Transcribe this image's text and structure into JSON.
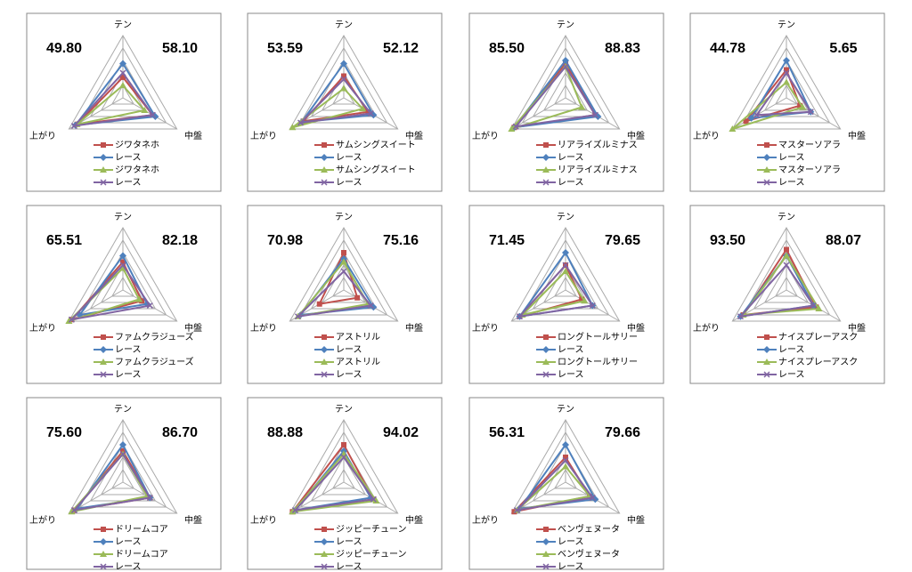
{
  "chart_data": [
    {
      "type": "radar",
      "annotations": [
        "49.80",
        "58.10"
      ],
      "categories": [
        "テン",
        "中盤",
        "上がり"
      ],
      "rlim": [
        0,
        100
      ],
      "rticks": [
        20,
        40,
        60,
        80,
        100
      ],
      "series": [
        {
          "name": "ジワタネホ",
          "color": "#c0504d",
          "marker": "square",
          "values": [
            33,
            55,
            85
          ]
        },
        {
          "name": "レース",
          "color": "#4f81bd",
          "marker": "diamond",
          "values": [
            55,
            60,
            88
          ]
        },
        {
          "name": "ジワタネホ",
          "color": "#9bbb59",
          "marker": "triangle",
          "values": [
            20,
            40,
            85
          ]
        },
        {
          "name": "レース",
          "color": "#8064a2",
          "marker": "x",
          "values": [
            40,
            55,
            90
          ]
        }
      ]
    },
    {
      "type": "radar",
      "annotations": [
        "53.59",
        "52.12"
      ],
      "categories": [
        "テン",
        "中盤",
        "上がり"
      ],
      "rlim": [
        0,
        100
      ],
      "rticks": [
        20,
        40,
        60,
        80,
        100
      ],
      "series": [
        {
          "name": "サムシングスイート",
          "color": "#c0504d",
          "marker": "square",
          "values": [
            35,
            45,
            75
          ]
        },
        {
          "name": "レース",
          "color": "#4f81bd",
          "marker": "diamond",
          "values": [
            55,
            55,
            78
          ]
        },
        {
          "name": "サムシングスイート",
          "color": "#9bbb59",
          "marker": "triangle",
          "values": [
            15,
            35,
            95
          ]
        },
        {
          "name": "レース",
          "color": "#8064a2",
          "marker": "x",
          "values": [
            30,
            50,
            80
          ]
        }
      ]
    },
    {
      "type": "radar",
      "annotations": [
        "85.50",
        "88.83"
      ],
      "categories": [
        "テン",
        "中盤",
        "上がり"
      ],
      "rlim": [
        0,
        100
      ],
      "rticks": [
        20,
        40,
        60,
        80,
        100
      ],
      "series": [
        {
          "name": "リアライズルミナス",
          "color": "#c0504d",
          "marker": "square",
          "values": [
            55,
            55,
            95
          ]
        },
        {
          "name": "レース",
          "color": "#4f81bd",
          "marker": "diamond",
          "values": [
            60,
            60,
            95
          ]
        },
        {
          "name": "リアライズルミナス",
          "color": "#9bbb59",
          "marker": "triangle",
          "values": [
            50,
            30,
            100
          ]
        },
        {
          "name": "レース",
          "color": "#8064a2",
          "marker": "x",
          "values": [
            50,
            55,
            92
          ]
        }
      ]
    },
    {
      "type": "radar",
      "annotations": [
        "44.78",
        "5.65"
      ],
      "categories": [
        "テン",
        "中盤",
        "上がり"
      ],
      "rlim": [
        0,
        100
      ],
      "rticks": [
        20,
        40,
        60,
        80,
        100
      ],
      "series": [
        {
          "name": "マスターソアラ",
          "color": "#c0504d",
          "marker": "square",
          "values": [
            45,
            25,
            75
          ]
        },
        {
          "name": "レース",
          "color": "#4f81bd",
          "marker": "diamond",
          "values": [
            60,
            45,
            65
          ]
        },
        {
          "name": "マスターソアラ",
          "color": "#9bbb59",
          "marker": "triangle",
          "values": [
            25,
            30,
            100
          ]
        },
        {
          "name": "レース",
          "color": "#8064a2",
          "marker": "x",
          "values": [
            40,
            45,
            55
          ]
        }
      ]
    },
    {
      "type": "radar",
      "annotations": [
        "65.51",
        "82.18"
      ],
      "categories": [
        "テン",
        "中盤",
        "上がり"
      ],
      "rlim": [
        0,
        100
      ],
      "rticks": [
        20,
        40,
        60,
        80,
        100
      ],
      "series": [
        {
          "name": "ファムクラジューズ",
          "color": "#c0504d",
          "marker": "square",
          "values": [
            45,
            35,
            95
          ]
        },
        {
          "name": "レース",
          "color": "#4f81bd",
          "marker": "diamond",
          "values": [
            55,
            45,
            80
          ]
        },
        {
          "name": "ファムクラジューズ",
          "color": "#9bbb59",
          "marker": "triangle",
          "values": [
            35,
            30,
            100
          ]
        },
        {
          "name": "レース",
          "color": "#8064a2",
          "marker": "x",
          "values": [
            40,
            50,
            95
          ]
        }
      ]
    },
    {
      "type": "radar",
      "annotations": [
        "70.98",
        "75.16"
      ],
      "categories": [
        "テン",
        "中盤",
        "上がり"
      ],
      "rlim": [
        0,
        100
      ],
      "rticks": [
        20,
        40,
        60,
        80,
        100
      ],
      "series": [
        {
          "name": "アストリル",
          "color": "#c0504d",
          "marker": "square",
          "values": [
            60,
            25,
            45
          ]
        },
        {
          "name": "レース",
          "color": "#4f81bd",
          "marker": "diamond",
          "values": [
            50,
            55,
            80
          ]
        },
        {
          "name": "アストリル",
          "color": "#9bbb59",
          "marker": "triangle",
          "values": [
            45,
            45,
            85
          ]
        },
        {
          "name": "レース",
          "color": "#8064a2",
          "marker": "x",
          "values": [
            30,
            50,
            85
          ]
        }
      ]
    },
    {
      "type": "radar",
      "annotations": [
        "71.45",
        "79.65"
      ],
      "categories": [
        "テン",
        "中盤",
        "上がり"
      ],
      "rlim": [
        0,
        100
      ],
      "rticks": [
        20,
        40,
        60,
        80,
        100
      ],
      "series": [
        {
          "name": "ロングトールサリー",
          "color": "#c0504d",
          "marker": "square",
          "values": [
            40,
            30,
            85
          ]
        },
        {
          "name": "レース",
          "color": "#4f81bd",
          "marker": "diamond",
          "values": [
            60,
            50,
            85
          ]
        },
        {
          "name": "ロングトールサリー",
          "color": "#9bbb59",
          "marker": "triangle",
          "values": [
            30,
            35,
            80
          ]
        },
        {
          "name": "レース",
          "color": "#8064a2",
          "marker": "x",
          "values": [
            40,
            50,
            85
          ]
        }
      ]
    },
    {
      "type": "radar",
      "annotations": [
        "93.50",
        "88.07"
      ],
      "categories": [
        "テン",
        "中盤",
        "上がり"
      ],
      "rlim": [
        0,
        100
      ],
      "rticks": [
        20,
        40,
        60,
        80,
        100
      ],
      "series": [
        {
          "name": "ナイスプレーアスク",
          "color": "#c0504d",
          "marker": "square",
          "values": [
            65,
            55,
            80
          ]
        },
        {
          "name": "レース",
          "color": "#4f81bd",
          "marker": "diamond",
          "values": [
            55,
            50,
            85
          ]
        },
        {
          "name": "ナイスプレーアスク",
          "color": "#9bbb59",
          "marker": "triangle",
          "values": [
            55,
            60,
            80
          ]
        },
        {
          "name": "レース",
          "color": "#8064a2",
          "marker": "x",
          "values": [
            40,
            50,
            85
          ]
        }
      ]
    },
    {
      "type": "radar",
      "annotations": [
        "75.60",
        "86.70"
      ],
      "categories": [
        "テン",
        "中盤",
        "上がり"
      ],
      "rlim": [
        0,
        100
      ],
      "rticks": [
        20,
        40,
        60,
        80,
        100
      ],
      "series": [
        {
          "name": "ドリームコア",
          "color": "#c0504d",
          "marker": "square",
          "values": [
            50,
            50,
            90
          ]
        },
        {
          "name": "レース",
          "color": "#4f81bd",
          "marker": "diamond",
          "values": [
            60,
            50,
            85
          ]
        },
        {
          "name": "ドリームコア",
          "color": "#9bbb59",
          "marker": "triangle",
          "values": [
            45,
            45,
            95
          ]
        },
        {
          "name": "レース",
          "color": "#8064a2",
          "marker": "x",
          "values": [
            45,
            50,
            90
          ]
        }
      ]
    },
    {
      "type": "radar",
      "annotations": [
        "88.88",
        "94.02"
      ],
      "categories": [
        "テン",
        "中盤",
        "上がり"
      ],
      "rlim": [
        0,
        100
      ],
      "rticks": [
        20,
        40,
        60,
        80,
        100
      ],
      "series": [
        {
          "name": "ジッピーチューン",
          "color": "#c0504d",
          "marker": "square",
          "values": [
            60,
            55,
            95
          ]
        },
        {
          "name": "レース",
          "color": "#4f81bd",
          "marker": "diamond",
          "values": [
            50,
            50,
            90
          ]
        },
        {
          "name": "ジッピーチューン",
          "color": "#9bbb59",
          "marker": "triangle",
          "values": [
            45,
            60,
            95
          ]
        },
        {
          "name": "レース",
          "color": "#8064a2",
          "marker": "x",
          "values": [
            40,
            55,
            90
          ]
        }
      ]
    },
    {
      "type": "radar",
      "annotations": [
        "56.31",
        "79.66"
      ],
      "categories": [
        "テン",
        "中盤",
        "上がり"
      ],
      "rlim": [
        0,
        100
      ],
      "rticks": [
        20,
        40,
        60,
        80,
        100
      ],
      "series": [
        {
          "name": "ベンヴェヌータ",
          "color": "#c0504d",
          "marker": "square",
          "values": [
            40,
            45,
            95
          ]
        },
        {
          "name": "レース",
          "color": "#4f81bd",
          "marker": "diamond",
          "values": [
            60,
            55,
            85
          ]
        },
        {
          "name": "ベンヴェヌータ",
          "color": "#9bbb59",
          "marker": "triangle",
          "values": [
            25,
            45,
            90
          ]
        },
        {
          "name": "レース",
          "color": "#8064a2",
          "marker": "x",
          "values": [
            35,
            50,
            90
          ]
        }
      ]
    }
  ]
}
